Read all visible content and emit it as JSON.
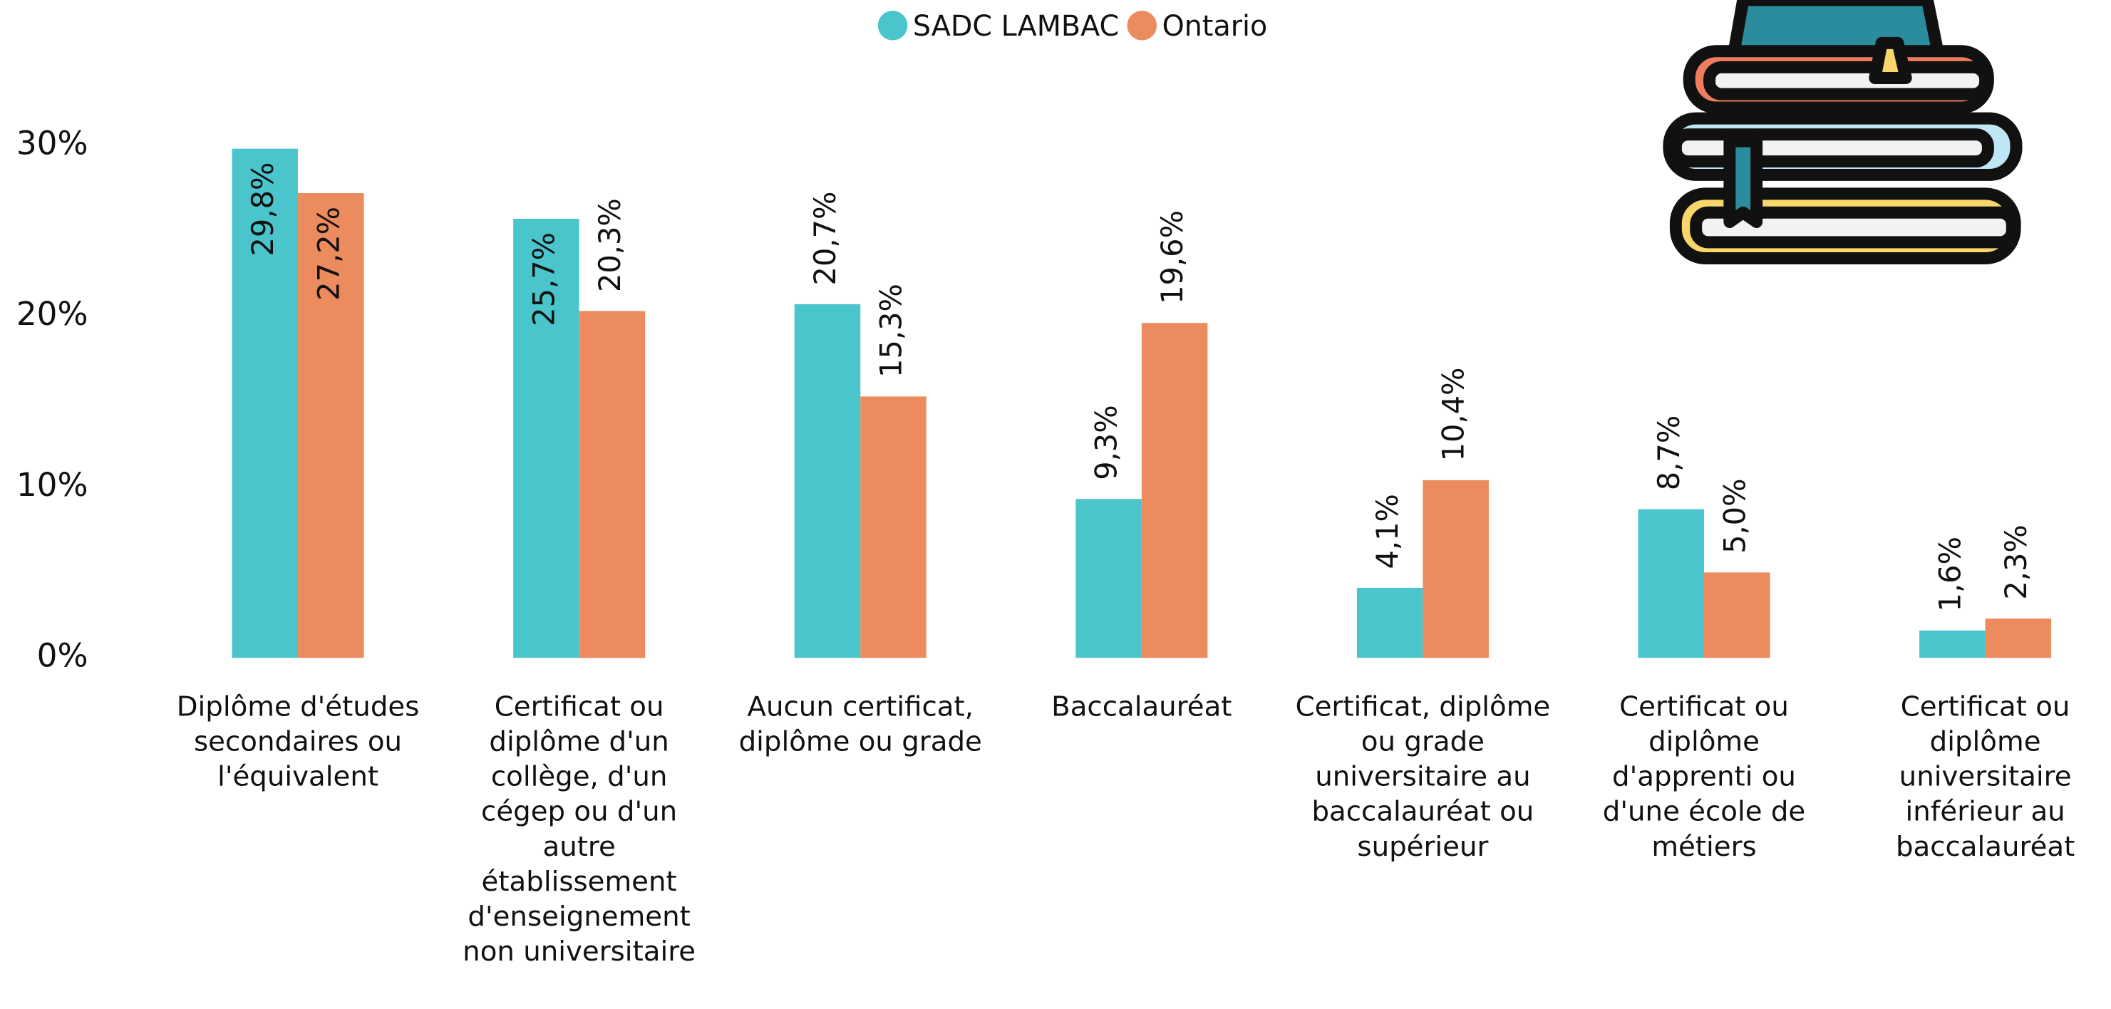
{
  "chart_data": {
    "type": "bar",
    "categories": [
      "Diplôme d'études secondaires ou l'équivalent",
      "Certificat ou diplôme d'un collège, d'un cégep ou d'un autre établissement d'enseignement non universitaire",
      "Aucun certificat, diplôme ou grade",
      "Baccalauréat",
      "Certificat, diplôme ou grade universitaire au baccalauréat ou supérieur",
      "Certificat ou diplôme d'apprenti ou d'une école de métiers",
      "Certificat ou diplôme universitaire inférieur au baccalauréat"
    ],
    "series": [
      {
        "name": "SADC LAMBAC",
        "color": "#4bc5cc",
        "values": [
          29.8,
          25.7,
          20.7,
          9.3,
          4.1,
          8.7,
          1.6
        ],
        "value_labels": [
          "29,8%",
          "25,7%",
          "20,7%",
          "9,3%",
          "4,1%",
          "8,7%",
          "1,6%"
        ]
      },
      {
        "name": "Ontario",
        "color": "#ec8b5e",
        "values": [
          27.2,
          20.3,
          15.3,
          19.6,
          10.4,
          5.0,
          2.3
        ],
        "value_labels": [
          "27,2%",
          "20,3%",
          "15,3%",
          "19,6%",
          "10,4%",
          "5,0%",
          "2,3%"
        ]
      }
    ],
    "ylim": [
      0,
      30
    ],
    "yticks": [
      {
        "value": 0,
        "label": "0%"
      },
      {
        "value": 10,
        "label": "10%"
      },
      {
        "value": 20,
        "label": "20%"
      },
      {
        "value": 30,
        "label": "30%"
      }
    ],
    "legend": "top"
  }
}
